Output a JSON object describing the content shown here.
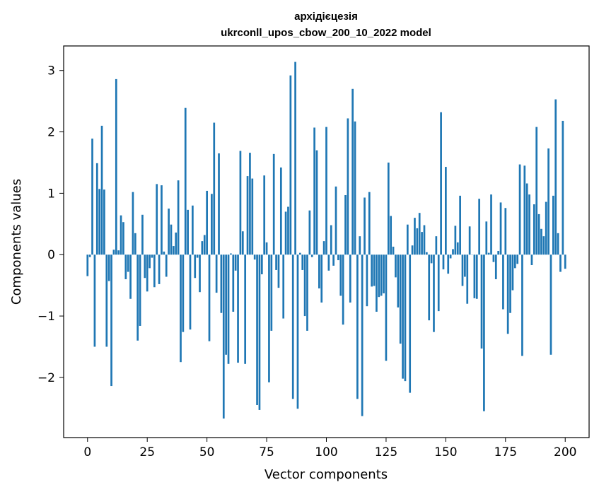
{
  "chart_data": {
    "type": "bar",
    "title_line1": "архідієцезія",
    "title_line2": "ukrconll_upos_cbow_200_10_2022 model",
    "xlabel": "Vector components",
    "ylabel": "Components values",
    "xlim": [
      -10,
      210
    ],
    "ylim": [
      -2.98,
      3.4
    ],
    "xticks": [
      0,
      25,
      50,
      75,
      100,
      125,
      150,
      175,
      200
    ],
    "xtick_labels": [
      "0",
      "25",
      "50",
      "75",
      "100",
      "125",
      "150",
      "175",
      "200"
    ],
    "yticks": [
      -2,
      -1,
      0,
      1,
      2,
      3
    ],
    "ytick_labels": [
      "−2",
      "−1",
      "0",
      "1",
      "2",
      "3"
    ],
    "color": "#1f77b4",
    "values": [
      -0.35,
      -0.04,
      1.89,
      -1.5,
      1.49,
      1.07,
      2.1,
      1.06,
      -1.5,
      -0.43,
      -2.14,
      0.08,
      2.86,
      0.07,
      0.64,
      0.53,
      -0.4,
      -0.28,
      -0.72,
      1.02,
      0.35,
      -1.4,
      -1.16,
      0.65,
      -0.38,
      -0.6,
      -0.22,
      -0.05,
      -0.53,
      1.15,
      -0.48,
      1.13,
      0.05,
      -0.36,
      0.75,
      0.49,
      0.14,
      0.36,
      1.21,
      -1.75,
      -1.26,
      2.39,
      0.73,
      -1.22,
      0.8,
      -0.38,
      -0.05,
      -0.61,
      0.22,
      0.32,
      1.04,
      -1.41,
      0.99,
      2.15,
      -0.62,
      1.65,
      -0.95,
      -2.67,
      -1.63,
      -1.78,
      0.02,
      -0.93,
      -0.26,
      -1.76,
      1.69,
      0.38,
      -1.78,
      1.28,
      1.66,
      1.24,
      -0.08,
      -2.45,
      -2.53,
      -0.32,
      1.29,
      0.2,
      -2.08,
      -1.24,
      1.64,
      -0.25,
      -0.54,
      1.42,
      -1.04,
      0.7,
      0.78,
      2.92,
      -2.35,
      3.14,
      -2.51,
      0.03,
      -0.25,
      -1.0,
      -1.24,
      0.72,
      -0.04,
      2.07,
      1.7,
      -0.55,
      -0.78,
      0.22,
      2.08,
      -0.26,
      0.48,
      -0.18,
      1.11,
      -0.09,
      -0.67,
      -1.14,
      0.97,
      2.22,
      -0.78,
      2.7,
      2.17,
      -2.35,
      0.3,
      -2.63,
      0.93,
      -0.84,
      1.02,
      -0.52,
      -0.51,
      -0.93,
      -0.69,
      -0.67,
      -0.63,
      -1.73,
      1.5,
      0.63,
      0.13,
      -0.37,
      -0.86,
      -1.45,
      -2.02,
      -2.06,
      0.49,
      -2.25,
      0.15,
      0.6,
      0.43,
      0.68,
      0.37,
      0.48,
      0.04,
      -1.07,
      -0.14,
      -1.26,
      0.3,
      -0.92,
      2.32,
      -0.24,
      1.43,
      -0.31,
      -0.06,
      0.09,
      0.47,
      0.2,
      0.96,
      -0.51,
      -0.36,
      -0.8,
      0.46,
      0.0,
      -0.71,
      -0.72,
      0.91,
      -1.53,
      -2.55,
      0.54,
      0.03,
      0.98,
      -0.12,
      -0.4,
      0.06,
      0.85,
      -0.89,
      0.76,
      -1.29,
      -0.95,
      -0.58,
      -0.22,
      -0.15,
      1.47,
      -1.65,
      1.45,
      1.16,
      0.98,
      -0.17,
      0.82,
      2.08,
      0.66,
      0.42,
      0.3,
      0.86,
      1.73,
      -1.63,
      0.96,
      2.53,
      0.35,
      -0.28,
      2.18,
      -0.23
    ]
  }
}
